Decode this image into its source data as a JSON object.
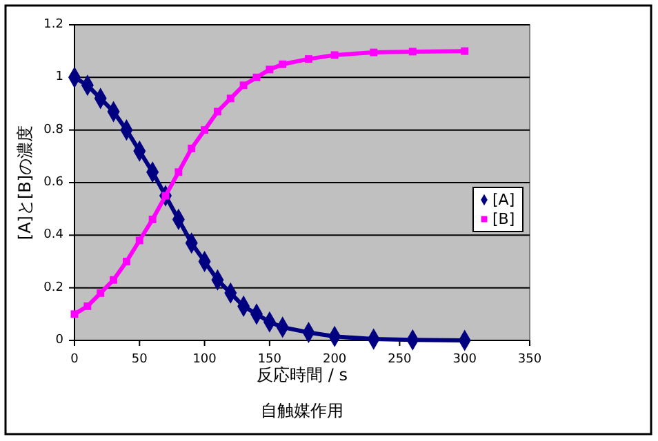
{
  "chart_data": {
    "type": "line",
    "title": "自触媒作用",
    "xlabel": "反応時間 / s",
    "ylabel": "[A]と[B]の濃度",
    "x": [
      0,
      10,
      20,
      30,
      40,
      50,
      60,
      70,
      80,
      90,
      100,
      110,
      120,
      130,
      140,
      150,
      160,
      180,
      200,
      230,
      260,
      300
    ],
    "series": [
      {
        "name": "[A]",
        "color": "#000080",
        "marker": "diamond",
        "values": [
          1.0,
          0.97,
          0.92,
          0.87,
          0.8,
          0.72,
          0.64,
          0.55,
          0.46,
          0.37,
          0.3,
          0.23,
          0.18,
          0.13,
          0.1,
          0.07,
          0.05,
          0.03,
          0.015,
          0.005,
          0.002,
          0
        ]
      },
      {
        "name": "[B]",
        "color": "#ff00ff",
        "marker": "square",
        "values": [
          0.1,
          0.13,
          0.18,
          0.23,
          0.3,
          0.38,
          0.46,
          0.55,
          0.64,
          0.73,
          0.8,
          0.87,
          0.92,
          0.97,
          1.0,
          1.03,
          1.05,
          1.07,
          1.085,
          1.095,
          1.098,
          1.1
        ]
      }
    ],
    "xlim": [
      0,
      350
    ],
    "xticks": [
      0,
      50,
      100,
      150,
      200,
      250,
      300,
      350
    ],
    "ylim": [
      0,
      1.2
    ],
    "yticks": [
      0,
      0.2,
      0.4,
      0.6,
      0.8,
      1,
      1.2
    ],
    "grid": "y",
    "legend": "right",
    "line_style": "solid"
  }
}
